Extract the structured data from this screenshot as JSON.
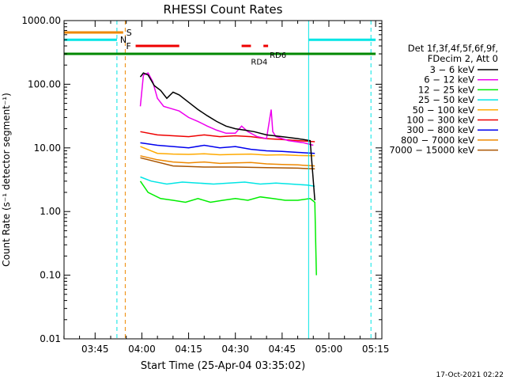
{
  "chart_data": {
    "type": "line",
    "title": "RHESSI Count Rates",
    "xlabel": "Start Time (25-Apr-04 03:35:02)",
    "ylabel": "Count Rate (s⁻¹ detector segment⁻¹)",
    "yscale": "log",
    "ylim": [
      0.01,
      1000
    ],
    "xlim": [
      "03:35:02",
      "05:17:00"
    ],
    "y_ticks": [
      "0.01",
      "0.10",
      "1.00",
      "10.00",
      "100.00",
      "1000.00"
    ],
    "x_ticks": [
      "03:45",
      "04:00",
      "04:15",
      "04:30",
      "04:45",
      "05:00",
      "05:15"
    ],
    "legend": {
      "placement": "right",
      "header": [
        "Det 1f,3f,4f,5f,6f,9f,",
        "FDecim 2, Att 0"
      ],
      "entries": [
        {
          "label": "3 − 6 keV",
          "color": "#000000"
        },
        {
          "label": "6 − 12 keV",
          "color": "#ee00ee"
        },
        {
          "label": "12 − 25 keV",
          "color": "#00ee00"
        },
        {
          "label": "25 − 50 keV",
          "color": "#00e5e5"
        },
        {
          "label": "50 − 100 keV",
          "color": "#ffaa00"
        },
        {
          "label": "100 − 300 keV",
          "color": "#ee0000"
        },
        {
          "label": "300 − 800 keV",
          "color": "#0000ee"
        },
        {
          "label": "800 − 7000 keV",
          "color": "#ee8800"
        },
        {
          "label": "7000 − 15000 keV",
          "color": "#aa5500"
        }
      ]
    },
    "series": [
      {
        "name": "3 − 6 keV",
        "color": "#000000",
        "x": [
          "03:59:30",
          "04:00:30",
          "04:02:00",
          "04:04:00",
          "04:06:00",
          "04:08:00",
          "04:10:00",
          "04:12:00",
          "04:15:00",
          "04:18:00",
          "04:21:00",
          "04:24:00",
          "04:27:00",
          "04:30:00",
          "04:33:00",
          "04:36:00",
          "04:40:00",
          "04:45:00",
          "04:50:00",
          "04:54:00",
          "04:55:30"
        ],
        "y": [
          130,
          150,
          140,
          95,
          80,
          60,
          75,
          68,
          52,
          40,
          32,
          26,
          22,
          20,
          19,
          18,
          16,
          15,
          14,
          13,
          1.5
        ]
      },
      {
        "name": "6 − 12 keV",
        "color": "#ee00ee",
        "x": [
          "03:59:30",
          "04:00:30",
          "04:02:00",
          "04:03:30",
          "04:05:00",
          "04:07:00",
          "04:09:00",
          "04:12:00",
          "04:15:00",
          "04:18:00",
          "04:21:00",
          "04:24:00",
          "04:27:00",
          "04:30:00",
          "04:32:00",
          "04:34:00",
          "04:37:00",
          "04:40:00",
          "04:41:30",
          "04:42:00",
          "04:43:00",
          "04:47:00",
          "04:52:00",
          "04:55:00"
        ],
        "y": [
          45,
          140,
          150,
          110,
          60,
          45,
          42,
          38,
          30,
          26,
          22,
          19,
          17,
          17,
          22,
          18,
          15,
          14,
          40,
          18,
          15,
          13,
          12,
          11
        ]
      },
      {
        "name": "12 − 25 keV",
        "color": "#00ee00",
        "x": [
          "03:59:30",
          "04:02:00",
          "04:06:00",
          "04:10:00",
          "04:14:00",
          "04:18:00",
          "04:22:00",
          "04:26:00",
          "04:30:00",
          "04:34:00",
          "04:38:00",
          "04:42:00",
          "04:46:00",
          "04:50:00",
          "04:54:00",
          "04:55:30",
          "04:56:00"
        ],
        "y": [
          3.0,
          2.0,
          1.6,
          1.5,
          1.4,
          1.6,
          1.4,
          1.5,
          1.6,
          1.5,
          1.7,
          1.6,
          1.5,
          1.5,
          1.6,
          1.4,
          0.1
        ]
      },
      {
        "name": "25 − 50 keV",
        "color": "#00e5e5",
        "x": [
          "03:59:30",
          "04:03:00",
          "04:08:00",
          "04:13:00",
          "04:18:00",
          "04:23:00",
          "04:28:00",
          "04:33:00",
          "04:38:00",
          "04:43:00",
          "04:48:00",
          "04:53:00",
          "04:55:30"
        ],
        "y": [
          3.5,
          3.0,
          2.7,
          2.9,
          2.8,
          2.7,
          2.8,
          2.9,
          2.7,
          2.8,
          2.7,
          2.6,
          2.5
        ]
      },
      {
        "name": "50 − 100 keV",
        "color": "#ffaa00",
        "x": [
          "03:59:30",
          "04:05:00",
          "04:10:00",
          "04:15:00",
          "04:20:00",
          "04:25:00",
          "04:30:00",
          "04:35:00",
          "04:40:00",
          "04:45:00",
          "04:50:00",
          "04:55:30"
        ],
        "y": [
          10.5,
          8.2,
          8.0,
          7.9,
          8.1,
          7.8,
          7.9,
          8.0,
          7.7,
          7.8,
          7.6,
          7.5
        ]
      },
      {
        "name": "100 − 300 keV",
        "color": "#ee0000",
        "x": [
          "03:59:30",
          "04:05:00",
          "04:10:00",
          "04:15:00",
          "04:20:00",
          "04:25:00",
          "04:30:00",
          "04:35:00",
          "04:40:00",
          "04:45:00",
          "04:50:00",
          "04:55:30"
        ],
        "y": [
          18,
          16,
          15.5,
          15,
          16,
          15,
          15.5,
          15,
          14,
          13.5,
          13,
          12.5
        ]
      },
      {
        "name": "300 − 800 keV",
        "color": "#0000ee",
        "x": [
          "03:59:30",
          "04:05:00",
          "04:10:00",
          "04:15:00",
          "04:20:00",
          "04:25:00",
          "04:30:00",
          "04:35:00",
          "04:40:00",
          "04:45:00",
          "04:50:00",
          "04:55:30"
        ],
        "y": [
          12,
          11,
          10.5,
          10,
          11,
          10,
          10.5,
          9.5,
          9,
          8.8,
          8.5,
          8.2
        ]
      },
      {
        "name": "800 − 7000 keV",
        "color": "#ee8800",
        "x": [
          "03:59:30",
          "04:05:00",
          "04:10:00",
          "04:15:00",
          "04:20:00",
          "04:25:00",
          "04:30:00",
          "04:35:00",
          "04:40:00",
          "04:45:00",
          "04:50:00",
          "04:55:30"
        ],
        "y": [
          7.5,
          6.5,
          6.0,
          5.8,
          6.0,
          5.7,
          5.8,
          5.9,
          5.6,
          5.5,
          5.4,
          5.2
        ]
      },
      {
        "name": "7000 − 15000 keV",
        "color": "#aa5500",
        "x": [
          "03:59:30",
          "04:10:00",
          "04:20:00",
          "04:30:00",
          "04:40:00",
          "04:50:00",
          "04:55:30"
        ],
        "y": [
          7.0,
          5.2,
          5.0,
          5.0,
          4.9,
          4.8,
          4.7
        ]
      }
    ],
    "markers": {
      "vertical_lines": [
        {
          "time": "03:35:02",
          "color": "#00e5e5",
          "style": "solid"
        },
        {
          "time": "03:52:00",
          "color": "#00e5e5",
          "style": "dashed"
        },
        {
          "time": "03:54:40",
          "color": "#ee8800",
          "style": "dashed"
        },
        {
          "time": "04:53:30",
          "color": "#00e5e5",
          "style": "solid"
        },
        {
          "time": "05:13:30",
          "color": "#00e5e5",
          "style": "dashed"
        }
      ],
      "flag_bars": [
        {
          "label": "S",
          "color": "#ee8800",
          "y": 650,
          "segments": [
            [
              "03:35:02",
              "03:54:00"
            ]
          ]
        },
        {
          "label": "N",
          "color": "#00e5e5",
          "y": 500,
          "segments": [
            [
              "03:35:02",
              "03:52:00"
            ],
            [
              "04:53:30",
              "05:15:00"
            ]
          ]
        },
        {
          "label": "F",
          "color": "#ee0000",
          "y": 400,
          "segments": [
            [
              "03:58:00",
              "04:12:00"
            ],
            [
              "04:32:00",
              "04:35:00"
            ],
            [
              "04:39:00",
              "04:40:30"
            ]
          ]
        },
        {
          "label": "",
          "color": "#008800",
          "y": 300,
          "segments": [
            [
              "03:35:02",
              "05:15:00"
            ]
          ]
        }
      ],
      "labels": [
        {
          "text": "RD4",
          "time": "04:35:00",
          "y": 230,
          "color": "#008800"
        },
        {
          "text": "RD6",
          "time": "04:41:00",
          "y": 290,
          "color": "#008800"
        }
      ]
    }
  },
  "footer": {
    "timestamp": "17-Oct-2021 02:22"
  }
}
